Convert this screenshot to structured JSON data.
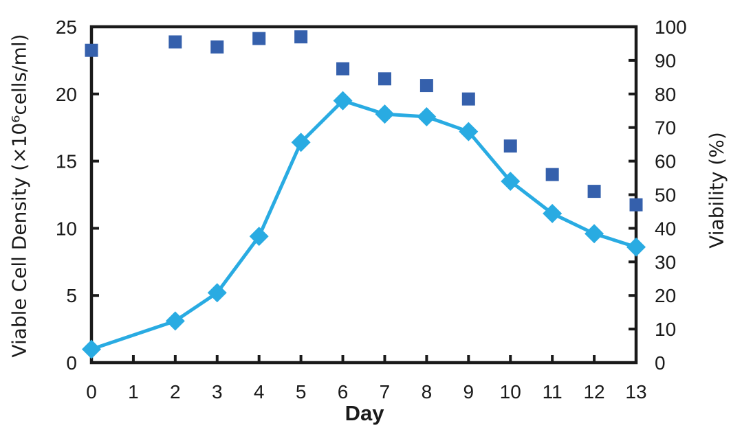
{
  "figure": {
    "x_axis_title": "Day",
    "y_left_axis_title": "Viable Cell Density (×10⁶cells/ml)",
    "y_right_axis_title": "Viability (%)"
  },
  "chart_data": {
    "type": "line",
    "title": "",
    "grid": false,
    "legend_position": "none",
    "axis_color": "#1a1a1a",
    "background_color": "#ffffff",
    "x": [
      0,
      2,
      3,
      4,
      5,
      6,
      7,
      8,
      9,
      10,
      11,
      12,
      13
    ],
    "x_axis": {
      "label": "Day",
      "range": [
        0,
        13
      ],
      "ticks": [
        0,
        1,
        2,
        3,
        4,
        5,
        6,
        7,
        8,
        9,
        10,
        11,
        12,
        13
      ]
    },
    "y_left_axis": {
      "label": "Viable Cell Density (×10⁶cells/ml)",
      "range": [
        0,
        25
      ],
      "ticks": [
        0,
        5,
        10,
        15,
        20,
        25
      ]
    },
    "y_right_axis": {
      "label": "Viability (%)",
      "range": [
        0,
        100
      ],
      "ticks": [
        0,
        10,
        20,
        30,
        40,
        50,
        60,
        70,
        80,
        90,
        100
      ]
    },
    "series": [
      {
        "name": "Viable Cell Density",
        "axis": "left",
        "marker": "diamond",
        "line": true,
        "color": "#29ABE2",
        "values": [
          1.0,
          3.1,
          5.2,
          9.4,
          16.4,
          19.5,
          18.5,
          18.3,
          17.2,
          13.5,
          11.1,
          9.6,
          8.6
        ]
      },
      {
        "name": "Viability",
        "axis": "right",
        "marker": "square",
        "line": false,
        "color": "#3560AC",
        "values": [
          93,
          95.5,
          94,
          96.5,
          97,
          87.5,
          84.5,
          82.5,
          78.5,
          64.5,
          56,
          51,
          47
        ]
      }
    ]
  }
}
